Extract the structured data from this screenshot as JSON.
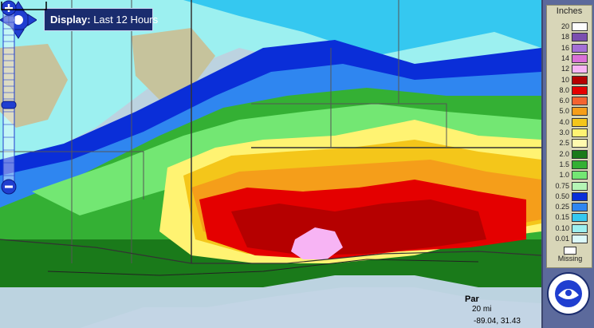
{
  "display": {
    "label": "Display:",
    "value": "Last 12 Hours"
  },
  "legend": {
    "title": "Inches",
    "levels": [
      {
        "label": "20",
        "color": "#fdfdfd"
      },
      {
        "label": "18",
        "color": "#7b4fb0"
      },
      {
        "label": "16",
        "color": "#a46fd6"
      },
      {
        "label": "14",
        "color": "#d970d7"
      },
      {
        "label": "12",
        "color": "#f7b4f4"
      },
      {
        "label": "10",
        "color": "#b50000"
      },
      {
        "label": "8.0",
        "color": "#e40000"
      },
      {
        "label": "6.0",
        "color": "#f46330"
      },
      {
        "label": "5.0",
        "color": "#f59e1a"
      },
      {
        "label": "4.0",
        "color": "#f4c61a"
      },
      {
        "label": "3.0",
        "color": "#fff372"
      },
      {
        "label": "2.5",
        "color": "#fffaaf"
      },
      {
        "label": "2.0",
        "color": "#1a7a1a"
      },
      {
        "label": "1.5",
        "color": "#34b034"
      },
      {
        "label": "1.0",
        "color": "#73e773"
      },
      {
        "label": "0.75",
        "color": "#b5f5b5"
      },
      {
        "label": "0.50",
        "color": "#0a2ed8"
      },
      {
        "label": "0.25",
        "color": "#2f86f0"
      },
      {
        "label": "0.15",
        "color": "#35c8f0"
      },
      {
        "label": "0.10",
        "color": "#9cf0f0"
      },
      {
        "label": "0.01",
        "color": "#dcfafa"
      }
    ],
    "missing_label": "Missing"
  },
  "map": {
    "place_label": "Par",
    "scale_label": "20 mi",
    "coordinates": "-89.04, 31.43"
  },
  "icons": {
    "pan": "pan-arrows-icon",
    "zoom_in": "plus-icon",
    "zoom_out": "minus-icon",
    "logo": "nws-logo-icon"
  }
}
